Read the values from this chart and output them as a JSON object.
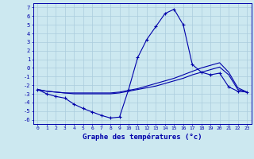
{
  "title": "Graphe des températures (°c)",
  "bg_color": "#cce8f0",
  "grid_color": "#aaccdd",
  "line_color": "#0000aa",
  "x_hours": [
    0,
    1,
    2,
    3,
    4,
    5,
    6,
    7,
    8,
    9,
    10,
    11,
    12,
    13,
    14,
    15,
    16,
    17,
    18,
    19,
    20,
    21,
    22,
    23
  ],
  "curve1": [
    -2.5,
    -3.0,
    -3.3,
    -3.5,
    -4.2,
    -4.7,
    -5.1,
    -5.5,
    -5.8,
    -5.7,
    -2.5,
    1.2,
    3.3,
    4.8,
    6.3,
    6.8,
    5.0,
    0.4,
    -0.5,
    -0.8,
    -0.6,
    -2.2,
    -2.7,
    -2.8
  ],
  "curve2": [
    -2.5,
    -2.7,
    -2.8,
    -2.9,
    -3.0,
    -3.0,
    -3.0,
    -3.0,
    -3.0,
    -2.9,
    -2.7,
    -2.5,
    -2.3,
    -2.1,
    -1.8,
    -1.5,
    -1.2,
    -0.8,
    -0.5,
    -0.2,
    0.1,
    -0.8,
    -2.5,
    -2.8
  ],
  "curve3": [
    -2.5,
    -2.7,
    -2.8,
    -2.9,
    -2.9,
    -2.9,
    -2.9,
    -2.9,
    -2.9,
    -2.8,
    -2.6,
    -2.4,
    -2.1,
    -1.8,
    -1.5,
    -1.2,
    -0.8,
    -0.4,
    0.0,
    0.3,
    0.6,
    -0.5,
    -2.3,
    -2.8
  ],
  "ylim": [
    -6.5,
    7.5
  ],
  "yticks": [
    -6,
    -5,
    -4,
    -3,
    -2,
    -1,
    0,
    1,
    2,
    3,
    4,
    5,
    6,
    7
  ],
  "figsize": [
    3.2,
    2.0
  ],
  "dpi": 100
}
